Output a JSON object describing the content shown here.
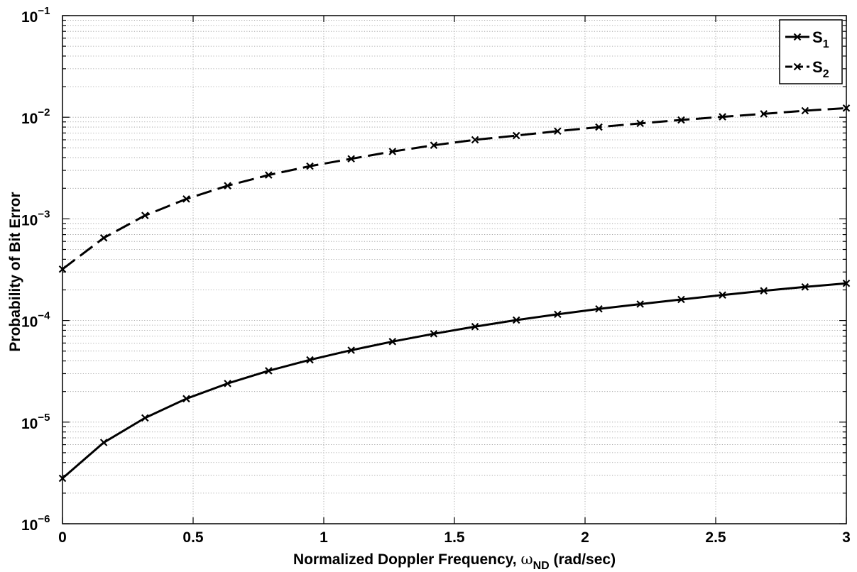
{
  "chart_data": {
    "type": "line",
    "xlabel_main": "Normalized Doppler Frequency, ",
    "xlabel_symbol": "ω",
    "xlabel_sub": "ND",
    "xlabel_unit": " (rad/sec)",
    "ylabel": "Probability of Bit Error",
    "xlim": [
      0,
      3
    ],
    "ylim": [
      1e-06,
      0.1
    ],
    "yscale": "log",
    "grid": true,
    "legend_position": "top-right",
    "x_ticks": [
      {
        "value": 0,
        "label": "0"
      },
      {
        "value": 0.5,
        "label": "0.5"
      },
      {
        "value": 1,
        "label": "1"
      },
      {
        "value": 1.5,
        "label": "1.5"
      },
      {
        "value": 2,
        "label": "2"
      },
      {
        "value": 2.5,
        "label": "2.5"
      },
      {
        "value": 3,
        "label": "3"
      }
    ],
    "y_ticks": [
      {
        "value": 1e-06,
        "base": "10",
        "exp": "−6"
      },
      {
        "value": 1e-05,
        "base": "10",
        "exp": "−5"
      },
      {
        "value": 0.0001,
        "base": "10",
        "exp": "−4"
      },
      {
        "value": 0.001,
        "base": "10",
        "exp": "−3"
      },
      {
        "value": 0.01,
        "base": "10",
        "exp": "−2"
      },
      {
        "value": 0.1,
        "base": "10",
        "exp": "−1"
      }
    ],
    "x": [
      0,
      0.158,
      0.316,
      0.474,
      0.632,
      0.789,
      0.947,
      1.105,
      1.263,
      1.421,
      1.579,
      1.737,
      1.895,
      2.053,
      2.211,
      2.368,
      2.526,
      2.684,
      2.842,
      3.0
    ],
    "series": [
      {
        "name": "S",
        "name_sub": "1",
        "style": "solid",
        "color": "#000000",
        "marker": "x",
        "values": [
          2.8e-06,
          6.3e-06,
          1.1e-05,
          1.7e-05,
          2.4e-05,
          3.2e-05,
          4.1e-05,
          5.1e-05,
          6.2e-05,
          7.4e-05,
          8.7e-05,
          0.000101,
          0.000115,
          0.00013,
          0.000145,
          0.000161,
          0.000178,
          0.000196,
          0.000214,
          0.000232
        ]
      },
      {
        "name": "S",
        "name_sub": "2",
        "style": "dashed",
        "color": "#000000",
        "marker": "x",
        "values": [
          0.00032,
          0.00065,
          0.00108,
          0.00157,
          0.00212,
          0.0027,
          0.0033,
          0.0039,
          0.0046,
          0.0053,
          0.006,
          0.0066,
          0.0073,
          0.008,
          0.0087,
          0.0094,
          0.0101,
          0.0108,
          0.0116,
          0.0123
        ]
      }
    ]
  }
}
